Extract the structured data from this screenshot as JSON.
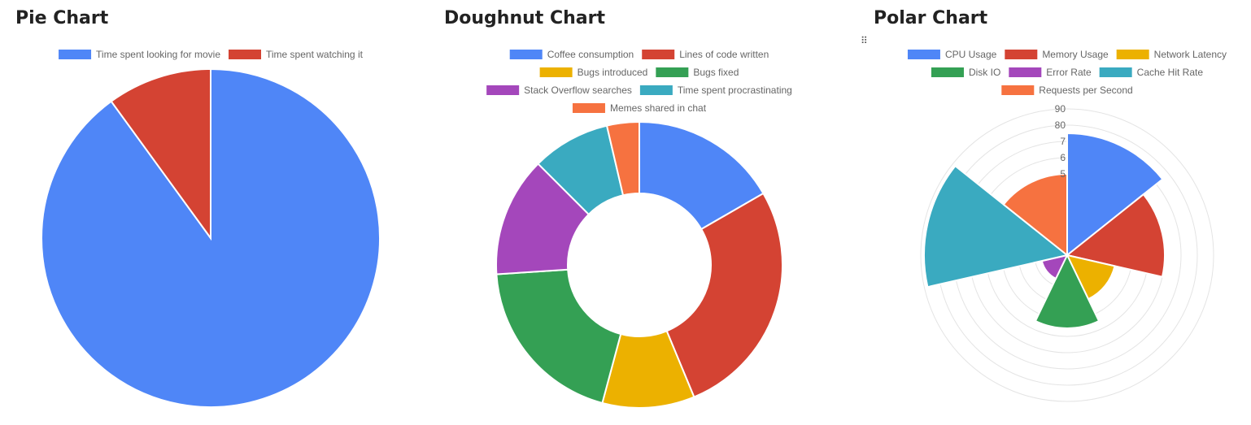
{
  "chart_data": [
    {
      "type": "pie",
      "title": "Pie Chart",
      "categories": [
        "Time spent looking for movie",
        "Time spent watching it"
      ],
      "values": [
        90,
        10
      ],
      "colors": [
        "#4f86f7",
        "#d44333"
      ],
      "legend": "top"
    },
    {
      "type": "doughnut",
      "title": "Doughnut Chart",
      "categories": [
        "Coffee consumption",
        "Lines of code written",
        "Bugs introduced",
        "Bugs fixed",
        "Stack Overflow searches",
        "Time spent procrastinating",
        "Memes shared in chat"
      ],
      "values": [
        16,
        26,
        10,
        19,
        13,
        8.5,
        3.5
      ],
      "colors": [
        "#4f86f7",
        "#d44333",
        "#ecb100",
        "#34a054",
        "#a447bb",
        "#3aaac0",
        "#f67240"
      ],
      "legend": "top"
    },
    {
      "type": "polar",
      "title": "Polar Chart",
      "categories": [
        "CPU Usage",
        "Memory Usage",
        "Network Latency",
        "Disk IO",
        "Error Rate",
        "Cache Hit Rate",
        "Requests per Second"
      ],
      "values": [
        75,
        60,
        30,
        45,
        16,
        88,
        50
      ],
      "colors": [
        "#4f86f7",
        "#d44333",
        "#ecb100",
        "#34a054",
        "#a447bb",
        "#3aaac0",
        "#f67240"
      ],
      "ticks": [
        "90",
        "80",
        "7",
        "6",
        "5"
      ],
      "rmax": 90,
      "grid": true,
      "legend": "top"
    }
  ]
}
